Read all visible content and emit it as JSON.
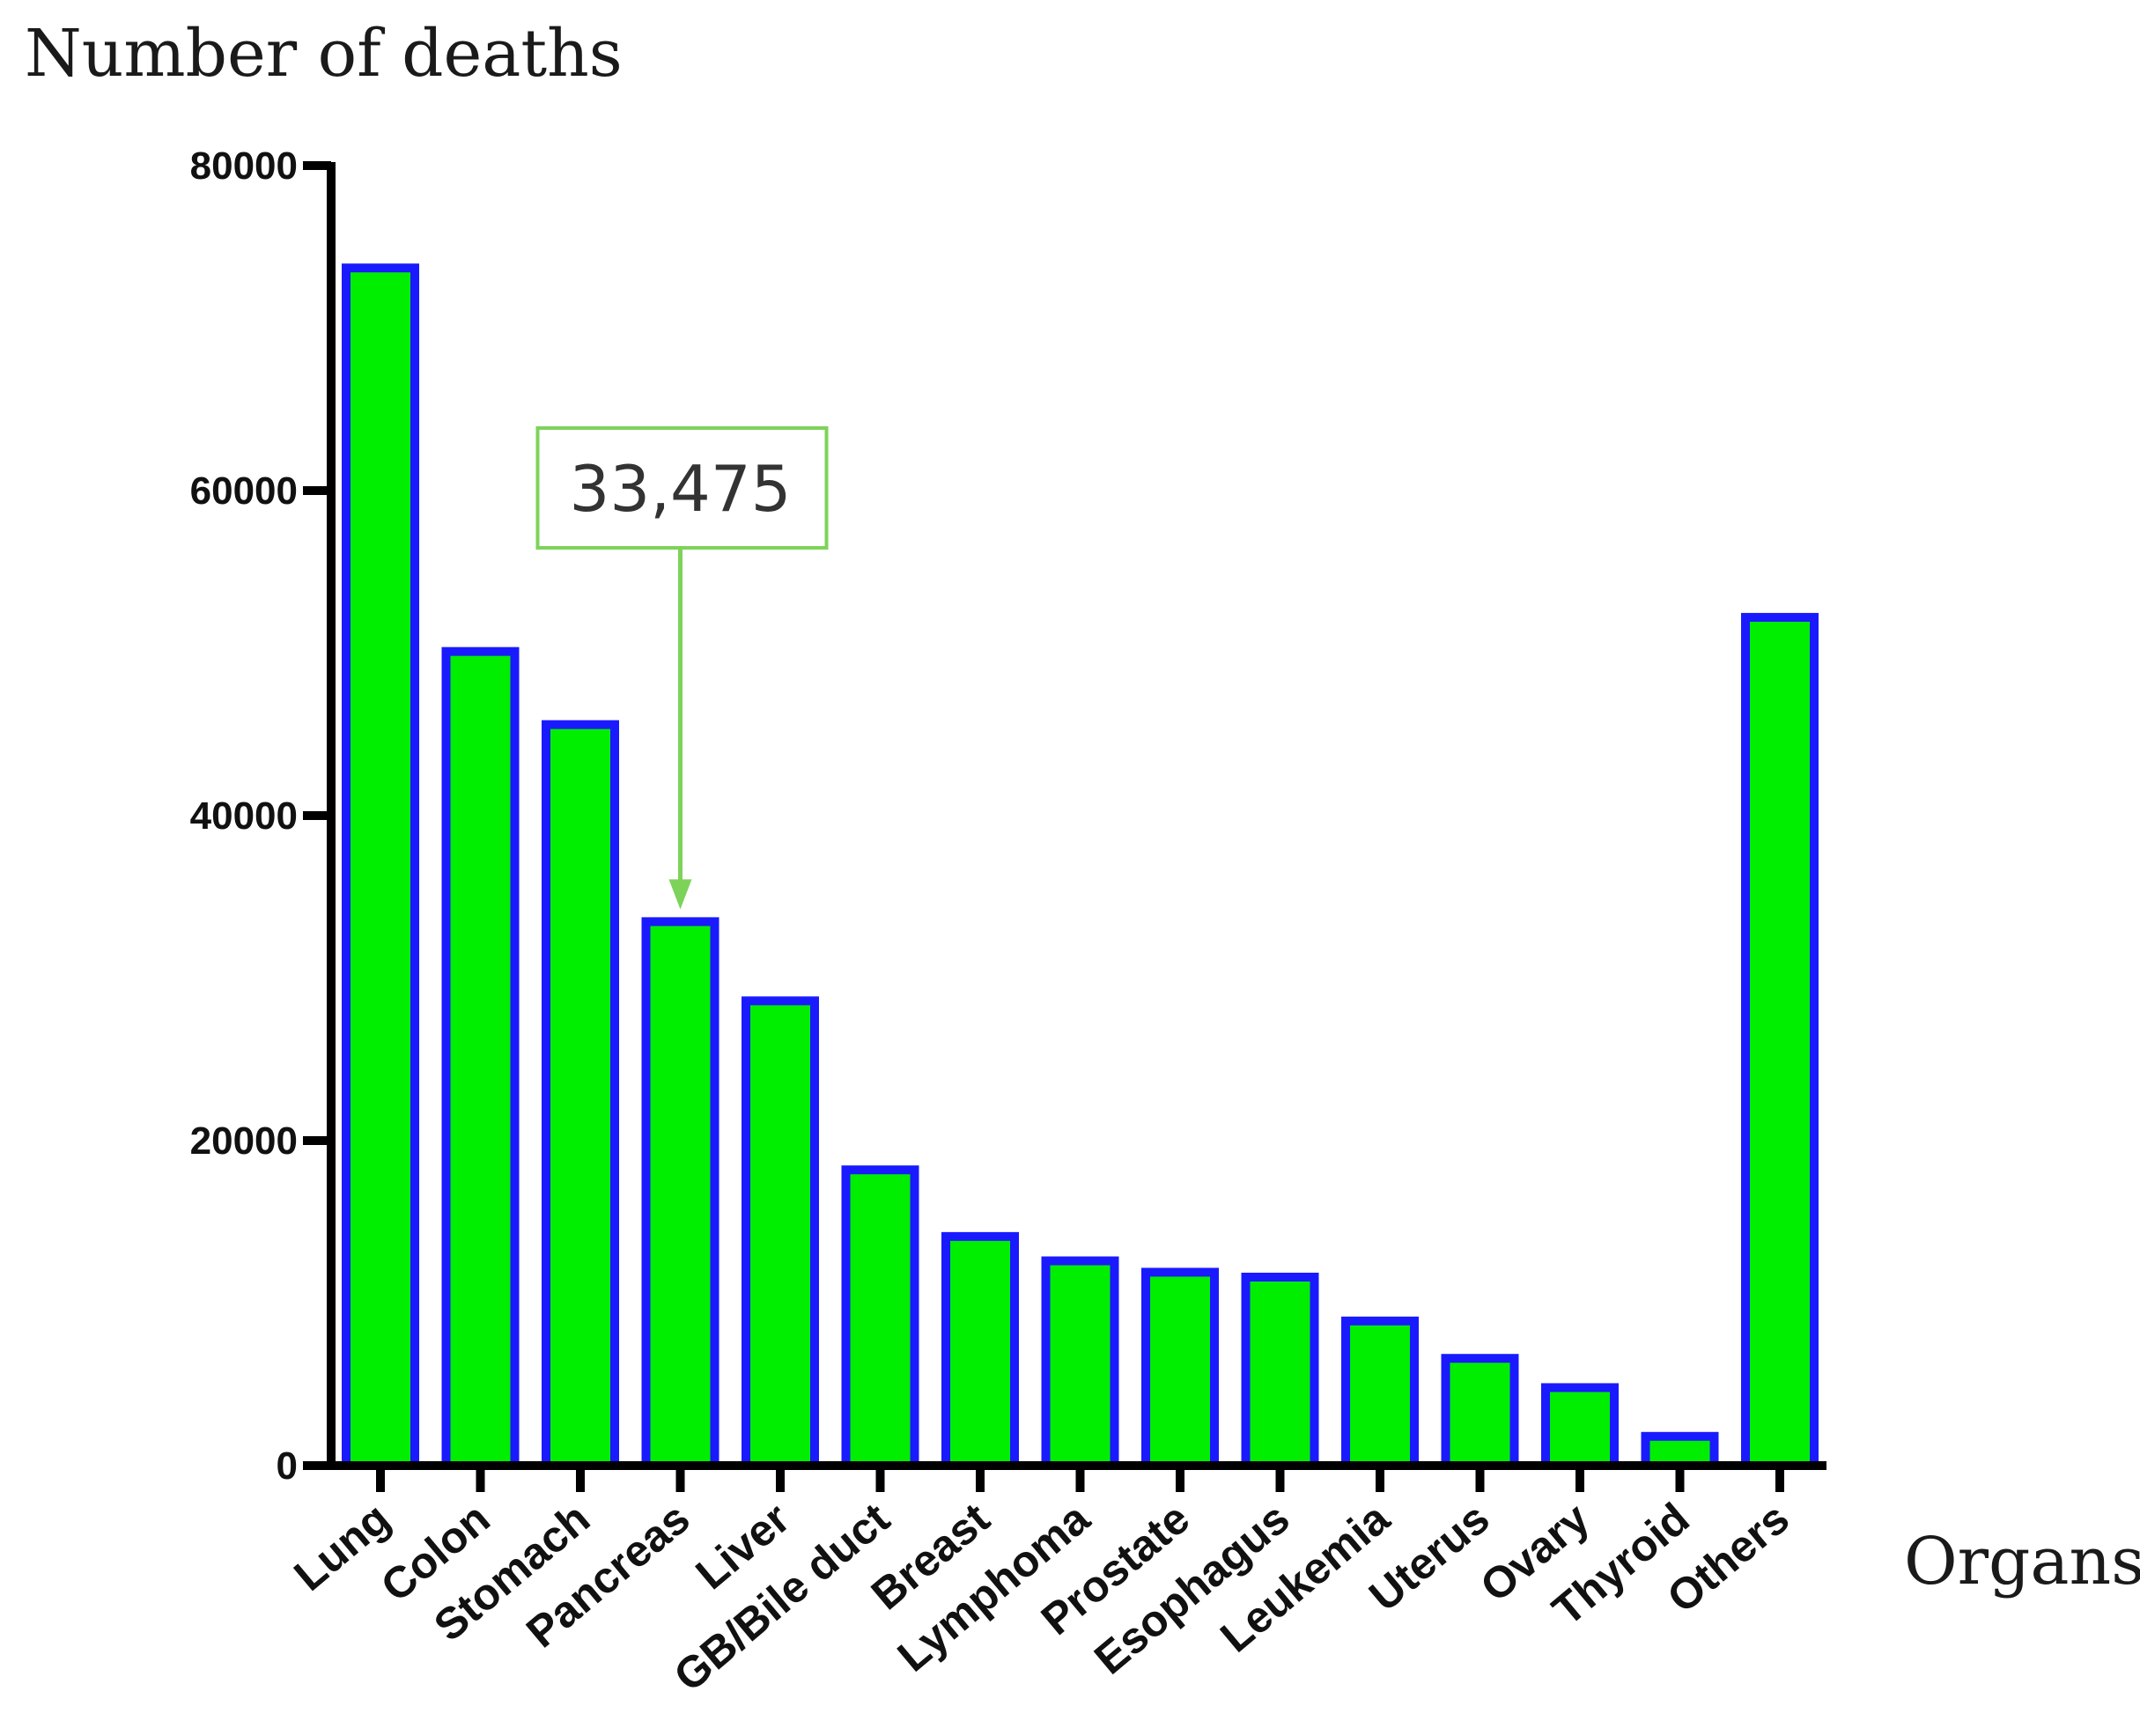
{
  "chart_data": {
    "type": "bar",
    "title": "",
    "ylabel": "Number of deaths",
    "xlabel": "Organs",
    "ylim": [
      0,
      80000
    ],
    "yticks": [
      0,
      20000,
      40000,
      60000,
      80000
    ],
    "ytick_labels": [
      "0",
      "20000",
      "40000",
      "60000",
      "80000"
    ],
    "categories": [
      "Lung",
      "Colon",
      "Stomach",
      "Pancreas",
      "Liver",
      "GB/Bile duct",
      "Breast",
      "Lymphoma",
      "Prostate",
      "Esophagus",
      "Leukemia",
      "Uterus",
      "Ovary",
      "Thyroid",
      "Others"
    ],
    "values": [
      73700,
      50100,
      45600,
      33475,
      28600,
      18200,
      14100,
      12600,
      11900,
      11600,
      8900,
      6600,
      4800,
      1800,
      52200
    ],
    "annotation": {
      "text": "33,475",
      "category": "Pancreas"
    },
    "colors": {
      "bar_fill": "#00ee00",
      "bar_edge": "#1a1aff",
      "annotation": "#7dd35a",
      "axis": "#000000"
    }
  }
}
